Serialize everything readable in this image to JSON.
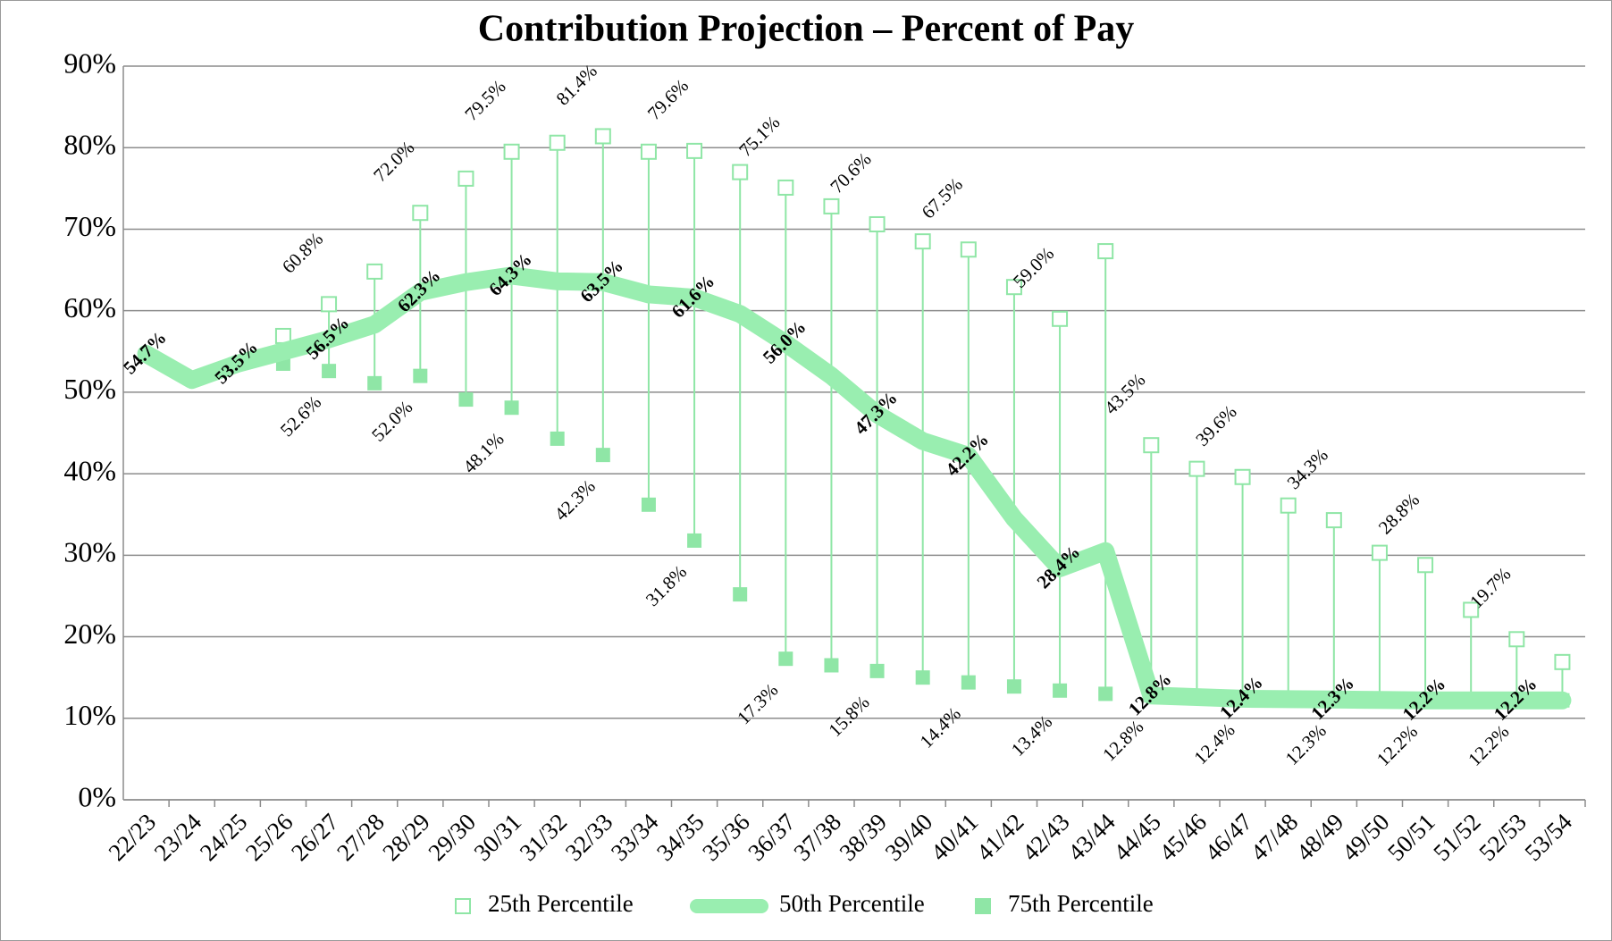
{
  "chart_data": {
    "type": "line",
    "title": "Contribution Projection – Percent of Pay",
    "categories": [
      "22/23",
      "23/24",
      "24/25",
      "25/26",
      "26/27",
      "27/28",
      "28/29",
      "29/30",
      "30/31",
      "31/32",
      "32/33",
      "33/34",
      "34/35",
      "35/36",
      "36/37",
      "37/38",
      "38/39",
      "39/40",
      "40/41",
      "41/42",
      "42/43",
      "43/44",
      "44/45",
      "45/46",
      "46/47",
      "47/48",
      "48/49",
      "49/50",
      "50/51",
      "51/52",
      "52/53",
      "53/54"
    ],
    "ylim": [
      0,
      90
    ],
    "yticks": [
      {
        "value": 0,
        "label": "0%"
      },
      {
        "value": 10,
        "label": "10%"
      },
      {
        "value": 20,
        "label": "20%"
      },
      {
        "value": 30,
        "label": "30%"
      },
      {
        "value": 40,
        "label": "40%"
      },
      {
        "value": 50,
        "label": "50%"
      },
      {
        "value": 60,
        "label": "60%"
      },
      {
        "value": 70,
        "label": "70%"
      },
      {
        "value": 80,
        "label": "80%"
      },
      {
        "value": 90,
        "label": "90%"
      }
    ],
    "grid": true,
    "high_low_lines": true,
    "legend": "bottom",
    "series": [
      {
        "name": "25th Percentile",
        "color": "#8fe6a6",
        "marker": "open-square",
        "values": [
          null,
          null,
          null,
          56.9,
          60.8,
          64.8,
          72.0,
          76.2,
          79.5,
          80.6,
          81.4,
          79.5,
          79.6,
          77.0,
          75.1,
          72.8,
          70.6,
          68.5,
          67.5,
          62.9,
          59.0,
          67.3,
          43.5,
          40.6,
          39.6,
          36.1,
          34.3,
          30.3,
          28.8,
          23.3,
          19.7,
          16.9
        ],
        "value_labels": [
          null,
          null,
          null,
          null,
          "60.8%",
          null,
          "72.0%",
          null,
          "79.5%",
          null,
          "81.4%",
          null,
          "79.6%",
          null,
          "75.1%",
          null,
          "70.6%",
          null,
          "67.5%",
          null,
          "59.0%",
          null,
          "43.5%",
          null,
          "39.6%",
          null,
          "34.3%",
          null,
          "28.8%",
          null,
          "19.7%",
          null
        ]
      },
      {
        "name": "50th Percentile",
        "color": "#99eeb0",
        "marker": "line",
        "values": [
          54.7,
          51.5,
          53.5,
          55.0,
          56.5,
          58.3,
          62.3,
          63.5,
          64.3,
          63.6,
          63.5,
          62.0,
          61.6,
          59.6,
          56.0,
          52.0,
          47.3,
          44.0,
          42.2,
          34.5,
          28.4,
          30.5,
          12.8,
          12.6,
          12.4,
          12.35,
          12.3,
          12.25,
          12.2,
          12.2,
          12.2,
          12.2
        ],
        "value_labels": [
          "54.7%",
          null,
          "53.5%",
          null,
          "56.5%",
          null,
          "62.3%",
          null,
          "64.3%",
          null,
          "63.5%",
          null,
          "61.6%",
          null,
          "56.0%",
          null,
          "47.3%",
          null,
          "42.2%",
          null,
          "28.4%",
          null,
          "12.8%",
          null,
          "12.4%",
          null,
          "12.3%",
          null,
          "12.2%",
          null,
          "12.2%",
          null
        ]
      },
      {
        "name": "75th Percentile",
        "color": "#8fe6a6",
        "marker": "filled-square",
        "values": [
          null,
          null,
          null,
          53.5,
          52.6,
          51.1,
          52.0,
          49.1,
          48.1,
          44.3,
          42.3,
          36.2,
          31.8,
          25.2,
          17.3,
          16.5,
          15.8,
          15.0,
          14.4,
          13.9,
          13.4,
          13.0,
          12.8,
          12.6,
          12.4,
          12.35,
          12.3,
          12.25,
          12.2,
          12.2,
          12.2,
          12.2
        ],
        "value_labels": [
          null,
          null,
          null,
          null,
          "52.6%",
          null,
          "52.0%",
          null,
          "48.1%",
          null,
          "42.3%",
          null,
          "31.8%",
          null,
          "17.3%",
          null,
          "15.8%",
          null,
          "14.4%",
          null,
          "13.4%",
          null,
          "12.8%",
          null,
          "12.4%",
          null,
          "12.3%",
          null,
          "12.2%",
          null,
          "12.2%",
          null
        ]
      }
    ]
  }
}
